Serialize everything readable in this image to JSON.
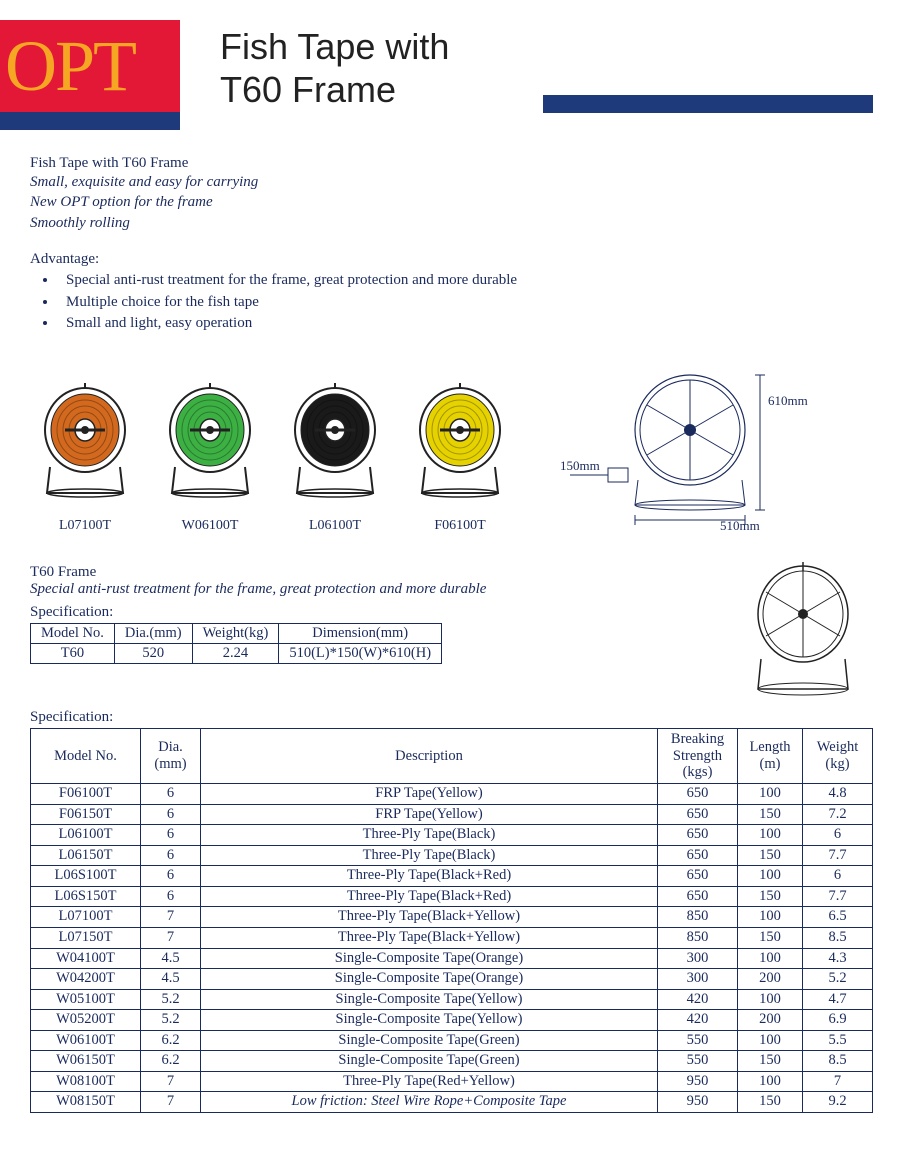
{
  "logo": "OPT",
  "title_line1": "Fish Tape with",
  "title_line2": "T60 Frame",
  "intro": {
    "heading": "Fish Tape with T60 Frame",
    "lines": [
      "Small, exquisite and easy for carrying",
      "New OPT option for the frame",
      "Smoothly rolling"
    ]
  },
  "advantage": {
    "title": "Advantage:",
    "items": [
      "Special anti-rust treatment for the frame, great protection and more durable",
      "Multiple choice for the fish tape",
      "Small and light, easy operation"
    ]
  },
  "products": [
    {
      "label": "L07100T",
      "color": "#d2691e"
    },
    {
      "label": "W06100T",
      "color": "#3cb043"
    },
    {
      "label": "L06100T",
      "color": "#1a1a1a"
    },
    {
      "label": "F06100T",
      "color": "#e6d200"
    }
  ],
  "dimensions": {
    "height": "610mm",
    "depth": "150mm",
    "width": "510mm"
  },
  "frame": {
    "title": "T60 Frame",
    "sub": "Special anti-rust treatment for the frame, great protection and more durable",
    "spec_label": "Specification:"
  },
  "small_table": {
    "headers": [
      "Model No.",
      "Dia.(mm)",
      "Weight(kg)",
      "Dimension(mm)"
    ],
    "row": [
      "T60",
      "520",
      "2.24",
      "510(L)*150(W)*610(H)"
    ]
  },
  "main_table": {
    "spec_label": "Specification:",
    "headers": [
      "Model No.",
      "Dia. (mm)",
      "Description",
      "Breaking Strength (kgs)",
      "Length (m)",
      "Weight (kg)"
    ],
    "rows": [
      [
        "F06100T",
        "6",
        "FRP Tape(Yellow)",
        "650",
        "100",
        "4.8"
      ],
      [
        "F06150T",
        "6",
        "FRP Tape(Yellow)",
        "650",
        "150",
        "7.2"
      ],
      [
        "L06100T",
        "6",
        "Three-Ply Tape(Black)",
        "650",
        "100",
        "6"
      ],
      [
        "L06150T",
        "6",
        "Three-Ply Tape(Black)",
        "650",
        "150",
        "7.7"
      ],
      [
        "L06S100T",
        "6",
        "Three-Ply Tape(Black+Red)",
        "650",
        "100",
        "6"
      ],
      [
        "L06S150T",
        "6",
        "Three-Ply Tape(Black+Red)",
        "650",
        "150",
        "7.7"
      ],
      [
        "L07100T",
        "7",
        "Three-Ply Tape(Black+Yellow)",
        "850",
        "100",
        "6.5"
      ],
      [
        "L07150T",
        "7",
        "Three-Ply Tape(Black+Yellow)",
        "850",
        "150",
        "8.5"
      ],
      [
        "W04100T",
        "4.5",
        "Single-Composite Tape(Orange)",
        "300",
        "100",
        "4.3"
      ],
      [
        "W04200T",
        "4.5",
        "Single-Composite Tape(Orange)",
        "300",
        "200",
        "5.2"
      ],
      [
        "W05100T",
        "5.2",
        "Single-Composite Tape(Yellow)",
        "420",
        "100",
        "4.7"
      ],
      [
        "W05200T",
        "5.2",
        "Single-Composite Tape(Yellow)",
        "420",
        "200",
        "6.9"
      ],
      [
        "W06100T",
        "6.2",
        "Single-Composite Tape(Green)",
        "550",
        "100",
        "5.5"
      ],
      [
        "W06150T",
        "6.2",
        "Single-Composite Tape(Green)",
        "550",
        "150",
        "8.5"
      ],
      [
        "W08100T",
        "7",
        "Three-Ply Tape(Red+Yellow)",
        "950",
        "100",
        "7"
      ],
      [
        "W08150T",
        "7",
        "Low friction: Steel Wire Rope+Composite Tape",
        "950",
        "150",
        "9.2"
      ]
    ],
    "italic_last_desc": true
  },
  "colors": {
    "logo_bg": "#e31837",
    "logo_text": "#f5a623",
    "brand_bar": "#1e3a7a",
    "text": "#1a2a5c"
  }
}
